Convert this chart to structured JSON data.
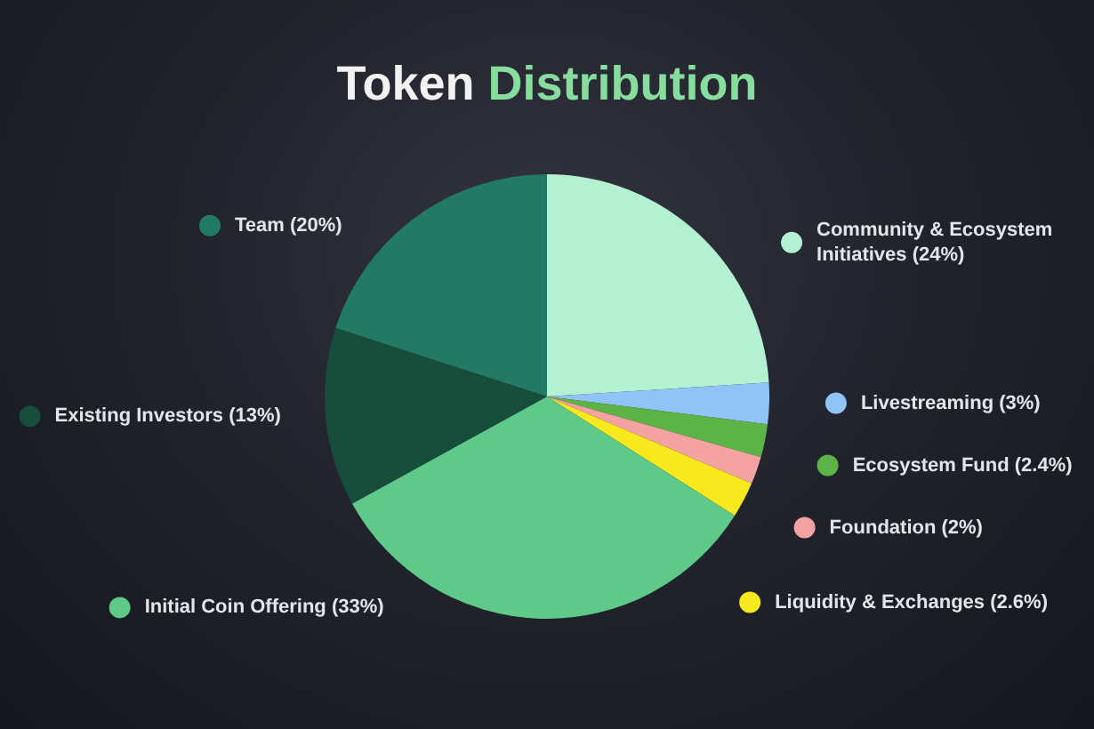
{
  "chart_data": {
    "type": "pie",
    "title": "Token Distribution",
    "categories": [
      "Community & Ecosystem Initiatives (24%)",
      "Livestreaming (3%)",
      "Ecosystem Fund (2.4%)",
      "Foundation (2%)",
      "Liquidity & Exchanges (2.6%)",
      "Initial Coin Offering (33%)",
      "Existing Investors (13%)",
      "Team (20%)"
    ],
    "values": [
      24,
      3,
      2.4,
      2,
      2.6,
      33,
      13,
      20
    ],
    "colors": [
      "#b4f0d2",
      "#90c4f6",
      "#5cb446",
      "#f4a2a2",
      "#f8e81e",
      "#5fc98a",
      "#174d3b",
      "#237a64"
    ],
    "legend": "right"
  }
}
